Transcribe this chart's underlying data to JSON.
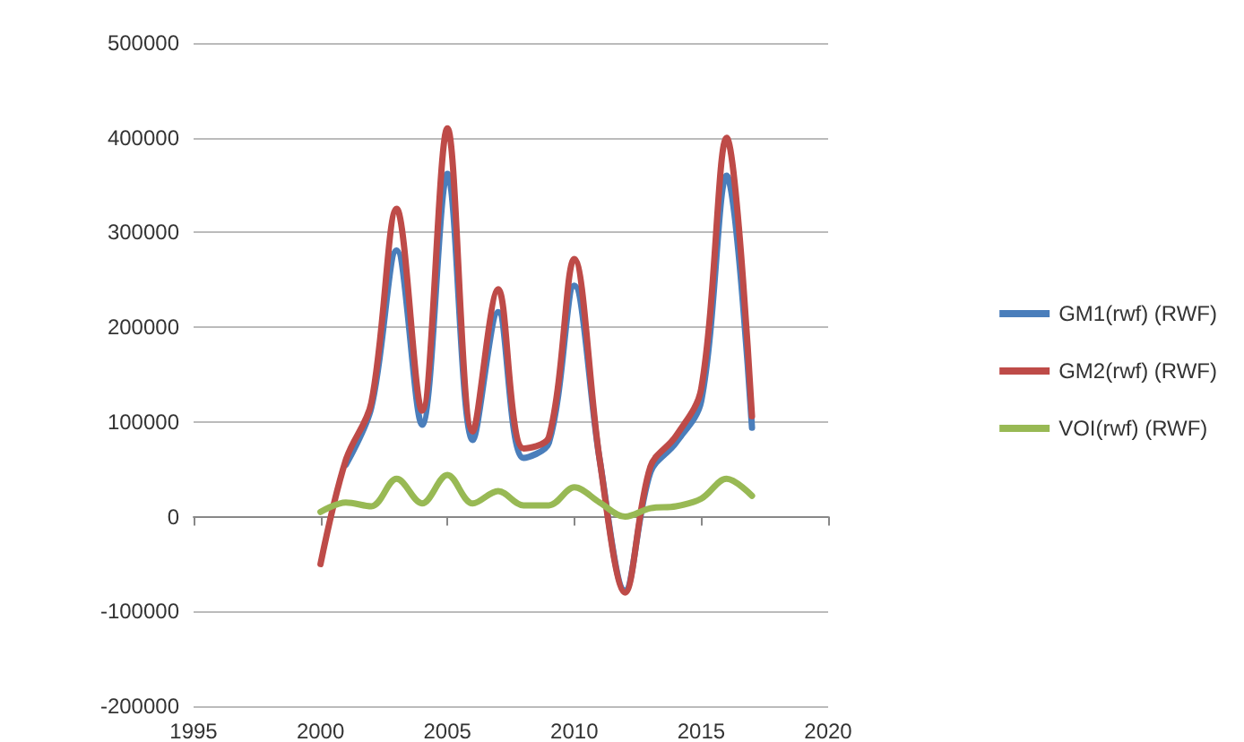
{
  "chart_data": {
    "type": "line",
    "x": [
      2000,
      2001,
      2002,
      2003,
      2004,
      2005,
      2006,
      2007,
      2008,
      2009,
      2010,
      2011,
      2012,
      2013,
      2014,
      2015,
      2016,
      2017
    ],
    "series": [
      {
        "name": "GM1(rwf) (RWF)",
        "color": "#4a7ebb",
        "values": [
          null,
          55000,
          115000,
          281000,
          97000,
          362000,
          81000,
          216000,
          62000,
          78000,
          244000,
          60000,
          -78000,
          47000,
          78000,
          122000,
          360000,
          94000
        ]
      },
      {
        "name": "GM2(rwf) (RWF)",
        "color": "#be4b48",
        "values": [
          -50000,
          60000,
          120000,
          325000,
          112000,
          410000,
          90000,
          240000,
          72000,
          84000,
          272000,
          60000,
          -80000,
          53000,
          85000,
          135000,
          400000,
          106000
        ]
      },
      {
        "name": "VOI(rwf) (RWF)",
        "color": "#98b954",
        "values": [
          5000,
          15000,
          11000,
          40000,
          14000,
          44000,
          14000,
          27000,
          12000,
          12000,
          31000,
          15000,
          0,
          9000,
          11000,
          19000,
          40000,
          22000
        ]
      }
    ],
    "xlim": [
      1995,
      2020
    ],
    "xticks": [
      1995,
      2000,
      2005,
      2010,
      2015,
      2020
    ],
    "ylim": [
      -200000,
      500000
    ],
    "yticks": [
      -200000,
      -100000,
      0,
      100000,
      200000,
      300000,
      400000,
      500000
    ],
    "grid": "y",
    "legend": "right",
    "marker": "none",
    "line_style": "solid"
  }
}
